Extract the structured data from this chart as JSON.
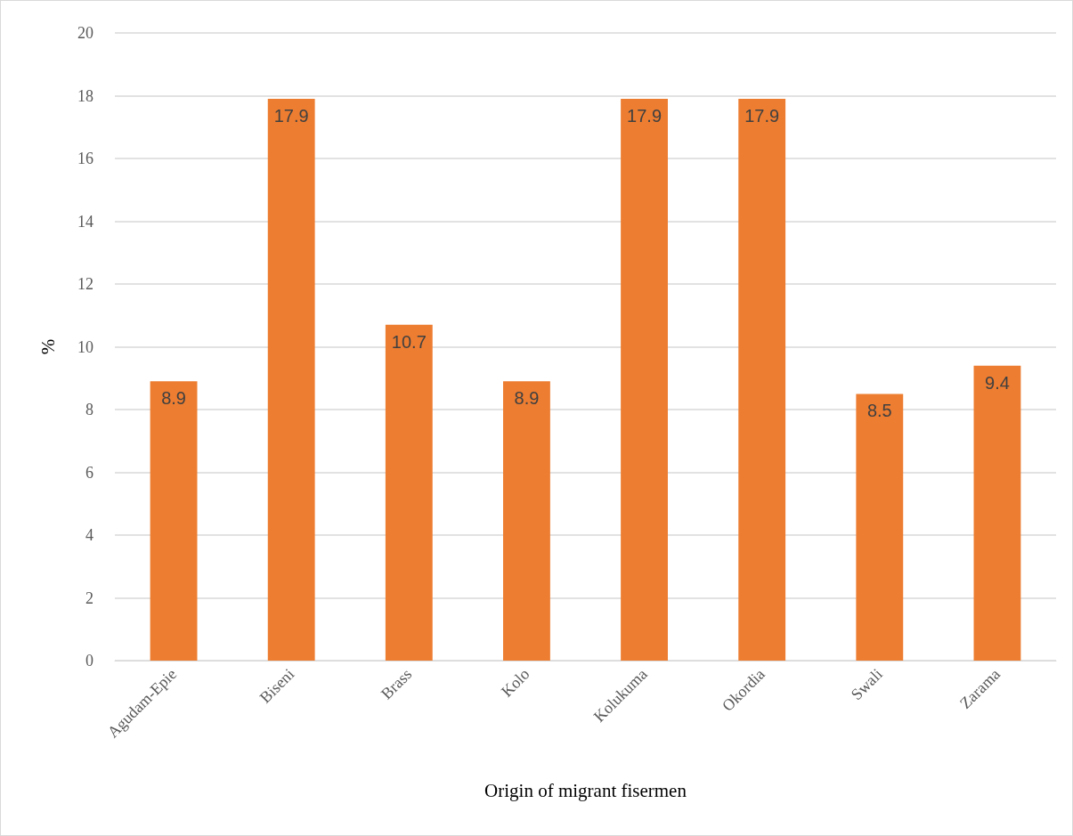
{
  "chart_data": {
    "type": "bar",
    "xlabel": "Origin of migrant fisermen",
    "ylabel": "%",
    "categories": [
      "Agudam-Epie",
      "Biseni",
      "Brass",
      "Kolo",
      "Kolukuma",
      "Okordia",
      "Swali",
      "Zarama"
    ],
    "values": [
      8.9,
      17.9,
      10.7,
      8.9,
      17.9,
      17.9,
      8.5,
      9.4
    ],
    "color": "#ed7d31",
    "ylim": [
      0,
      20
    ],
    "yticks": [
      0,
      2,
      4,
      6,
      8,
      10,
      12,
      14,
      16,
      18,
      20
    ],
    "grid": "y",
    "data_labels": true
  }
}
